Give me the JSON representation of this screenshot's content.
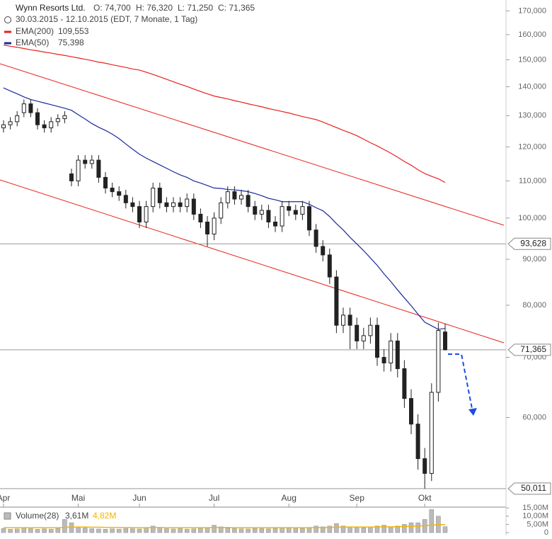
{
  "chart_data": {
    "type": "candlestick",
    "title": "Wynn Resorts Ltd.",
    "ohlc_text": [
      "O: 74,700",
      "H: 76,320",
      "L: 71,250",
      "C: 71,365"
    ],
    "subtitle": "30.03.2015 - 12.10.2015 (EDT, 7 Monate, 1 Tag)",
    "log_scale": true,
    "categories": [
      "Apr",
      null,
      null,
      null,
      null,
      null,
      null,
      null,
      null,
      null,
      null,
      "Mai",
      null,
      null,
      null,
      null,
      null,
      null,
      null,
      null,
      "Jun",
      null,
      null,
      null,
      null,
      null,
      null,
      null,
      null,
      null,
      null,
      "Jul",
      null,
      null,
      null,
      null,
      null,
      null,
      null,
      null,
      null,
      null,
      "Aug",
      null,
      null,
      null,
      null,
      null,
      null,
      null,
      null,
      null,
      "Sep",
      null,
      null,
      null,
      null,
      null,
      null,
      null,
      null,
      null,
      "Okt",
      null,
      null,
      null
    ],
    "open": [
      126,
      127,
      128,
      131,
      134,
      131,
      127,
      126,
      128,
      129,
      112,
      110,
      116,
      115,
      116,
      111,
      108,
      107,
      106,
      104,
      103,
      99,
      103,
      108,
      104,
      103,
      104,
      103,
      105,
      101,
      99,
      96,
      100,
      104,
      107,
      105,
      106,
      103,
      101,
      102,
      99,
      98,
      103,
      102,
      101,
      103,
      97,
      93,
      91,
      86,
      76,
      78,
      76,
      73,
      74,
      76,
      70,
      69,
      73,
      68,
      63,
      59,
      54,
      52,
      64,
      74.7
    ],
    "high": [
      128.5,
      129.5,
      131.5,
      135.5,
      135.5,
      132.5,
      128.5,
      129.5,
      130.5,
      131.5,
      113.5,
      117.5,
      117.5,
      117.5,
      117.5,
      112.5,
      109.5,
      108.5,
      107.5,
      105.5,
      104.5,
      104.5,
      109.5,
      109.5,
      105.5,
      105.5,
      105.5,
      106.5,
      106.5,
      102.5,
      100.5,
      101.5,
      105.5,
      108.5,
      108.5,
      107.5,
      107.5,
      104.5,
      103.5,
      103.5,
      100.5,
      104.5,
      104.5,
      103.5,
      104.5,
      104.5,
      98.5,
      94.5,
      92.5,
      87.5,
      79.5,
      79.5,
      77.5,
      75.5,
      77.5,
      77.5,
      71.5,
      74.5,
      74.5,
      69.5,
      64.5,
      60.5,
      55.5,
      65.5,
      76.5,
      76.32
    ],
    "low": [
      124.5,
      125.5,
      126.5,
      129.5,
      129.5,
      125.5,
      124.5,
      124.5,
      126.5,
      127.5,
      108.5,
      108.5,
      113.5,
      113.5,
      109.5,
      106.5,
      105.5,
      104.5,
      102.5,
      101.5,
      97.5,
      97.5,
      101.5,
      102.5,
      101.5,
      101.5,
      101.5,
      101.5,
      99.5,
      97.5,
      93,
      94.5,
      98.5,
      102.5,
      103.5,
      103.5,
      101.5,
      99.5,
      99.5,
      97.5,
      96.5,
      96.5,
      100.5,
      99.5,
      99.5,
      95.5,
      91.5,
      89.5,
      84.5,
      74.5,
      74.5,
      71.5,
      71.5,
      71.5,
      72.5,
      68.5,
      67.5,
      67.5,
      66.5,
      61.5,
      57.5,
      52.5,
      50.011,
      51,
      62.5,
      71.25
    ],
    "close": [
      127,
      128,
      130,
      134,
      131,
      127,
      126,
      128,
      129,
      130,
      110,
      116,
      115,
      116,
      111,
      108,
      107,
      106,
      104,
      103,
      99,
      103,
      108,
      104,
      103,
      104,
      103,
      105,
      101,
      99,
      96,
      100,
      104,
      107,
      105,
      106,
      103,
      101,
      102,
      99,
      98,
      103,
      102,
      101,
      103,
      97,
      93,
      91,
      86,
      76,
      78,
      76,
      73,
      74,
      76,
      70,
      69,
      73,
      68,
      63,
      59,
      54,
      52,
      64,
      75,
      71.365
    ],
    "series": [
      {
        "name": "EMA(200)",
        "last_label": "109,553",
        "color": "#e8211b",
        "values": [
          155.8,
          155.3,
          154.9,
          154.4,
          153.9,
          153.5,
          153,
          152.6,
          152.1,
          151.7,
          151.2,
          150.7,
          150.2,
          149.7,
          149.1,
          148.7,
          148.1,
          147.6,
          147.1,
          146.5,
          146.1,
          145.3,
          144.5,
          143.6,
          142.7,
          141.8,
          140.9,
          140.1,
          139.2,
          138.3,
          137.5,
          136.7,
          136.2,
          135.7,
          135.1,
          134.6,
          134,
          133.5,
          133,
          132.4,
          131.9,
          131.4,
          130.9,
          130.3,
          129.7,
          129.2,
          128.7,
          127.9,
          127,
          126.1,
          125.2,
          124.4,
          123.5,
          122.4,
          121.3,
          120.3,
          119.2,
          118.1,
          116.9,
          115.6,
          114.5,
          113.2,
          112.1,
          111.3,
          110.6,
          109.553
        ]
      },
      {
        "name": "EMA(50)",
        "last_label": "75,398",
        "color": "#1a2a9c",
        "values": [
          139.6,
          138.5,
          137.5,
          136.4,
          135.5,
          134.9,
          134.3,
          133.7,
          133.1,
          132.5,
          131.8,
          130.3,
          128.9,
          127.4,
          126.2,
          125.2,
          124,
          122.6,
          120.9,
          119.3,
          117.8,
          116.6,
          115.6,
          114.6,
          113.6,
          112.6,
          111.7,
          111,
          110,
          109.4,
          108.7,
          108,
          107.9,
          107.6,
          107.5,
          107.3,
          107,
          106.5,
          105.9,
          105.2,
          104.8,
          104.3,
          104.3,
          104.3,
          104.3,
          103.6,
          102.7,
          101.9,
          100.4,
          98.6,
          97,
          95.2,
          93.6,
          92,
          90.3,
          88.6,
          86.7,
          85,
          83.2,
          81.5,
          79.9,
          78.2,
          76.6,
          75.9,
          75.2,
          75.398
        ]
      }
    ],
    "ylim": [
      50,
      172
    ],
    "yticks": [
      {
        "value": 60,
        "label": "60,000"
      },
      {
        "value": 70,
        "label": "70,000"
      },
      {
        "value": 80,
        "label": "80,000"
      },
      {
        "value": 90,
        "label": "90,000"
      },
      {
        "value": 100,
        "label": "100,000"
      },
      {
        "value": 110,
        "label": "110,000"
      },
      {
        "value": 120,
        "label": "120,000"
      },
      {
        "value": 130,
        "label": "130,000"
      },
      {
        "value": 140,
        "label": "140,000"
      },
      {
        "value": 150,
        "label": "150,000"
      },
      {
        "value": 160,
        "label": "160,000"
      },
      {
        "value": 170,
        "label": "170,000"
      }
    ],
    "price_lines": [
      {
        "value": 93.628,
        "label": "93,628"
      },
      {
        "value": 71.365,
        "label": "71,365"
      },
      {
        "value": 50.011,
        "label": "50,011"
      }
    ],
    "volume": {
      "title": "Volume(28)",
      "last_label": "3,61M",
      "ema_label": "4,82M",
      "color": "#bbbbbb",
      "ema_color": "#f5b400",
      "values": [
        2.5,
        2,
        2.2,
        3,
        2.4,
        2,
        2.3,
        2.1,
        2.5,
        8,
        6,
        3.5,
        2.8,
        2.4,
        2.2,
        2,
        2.3,
        2.1,
        2.5,
        2.4,
        2.2,
        3,
        4,
        3,
        2.4,
        2.2,
        2.5,
        2.1,
        2.3,
        2.6,
        3,
        4.5,
        3.5,
        2.8,
        2.5,
        2.3,
        2.2,
        2.5,
        2.4,
        2.3,
        2.6,
        3,
        2.8,
        2.4,
        2.5,
        3,
        4,
        3.5,
        4,
        5.5,
        4,
        3.5,
        3.2,
        3,
        3.4,
        4,
        4.5,
        3.5,
        4,
        5,
        6,
        6,
        8,
        14,
        10,
        3.61
      ],
      "ema": [
        3,
        3,
        3,
        3,
        3,
        3,
        3,
        3,
        3,
        3.2,
        3.4,
        3.4,
        3.4,
        3.3,
        3.3,
        3.2,
        3.2,
        3.1,
        3.1,
        3.1,
        3,
        3,
        3.1,
        3.1,
        3,
        3,
        3,
        3,
        3,
        3,
        3,
        3.1,
        3.1,
        3.1,
        3,
        3,
        3,
        3,
        3,
        3,
        3,
        3,
        3,
        3,
        3,
        3,
        3.1,
        3.1,
        3.2,
        3.3,
        3.4,
        3.4,
        3.4,
        3.4,
        3.4,
        3.5,
        3.5,
        3.5,
        3.6,
        3.7,
        3.9,
        4,
        4.2,
        4.6,
        4.8,
        4.82
      ],
      "ylim": [
        0,
        15.5
      ],
      "yticks": [
        {
          "value": 15,
          "label": "15,00M"
        },
        {
          "value": 10,
          "label": "10,00M"
        },
        {
          "value": 5,
          "label": "5,00M"
        },
        0
      ]
    }
  }
}
